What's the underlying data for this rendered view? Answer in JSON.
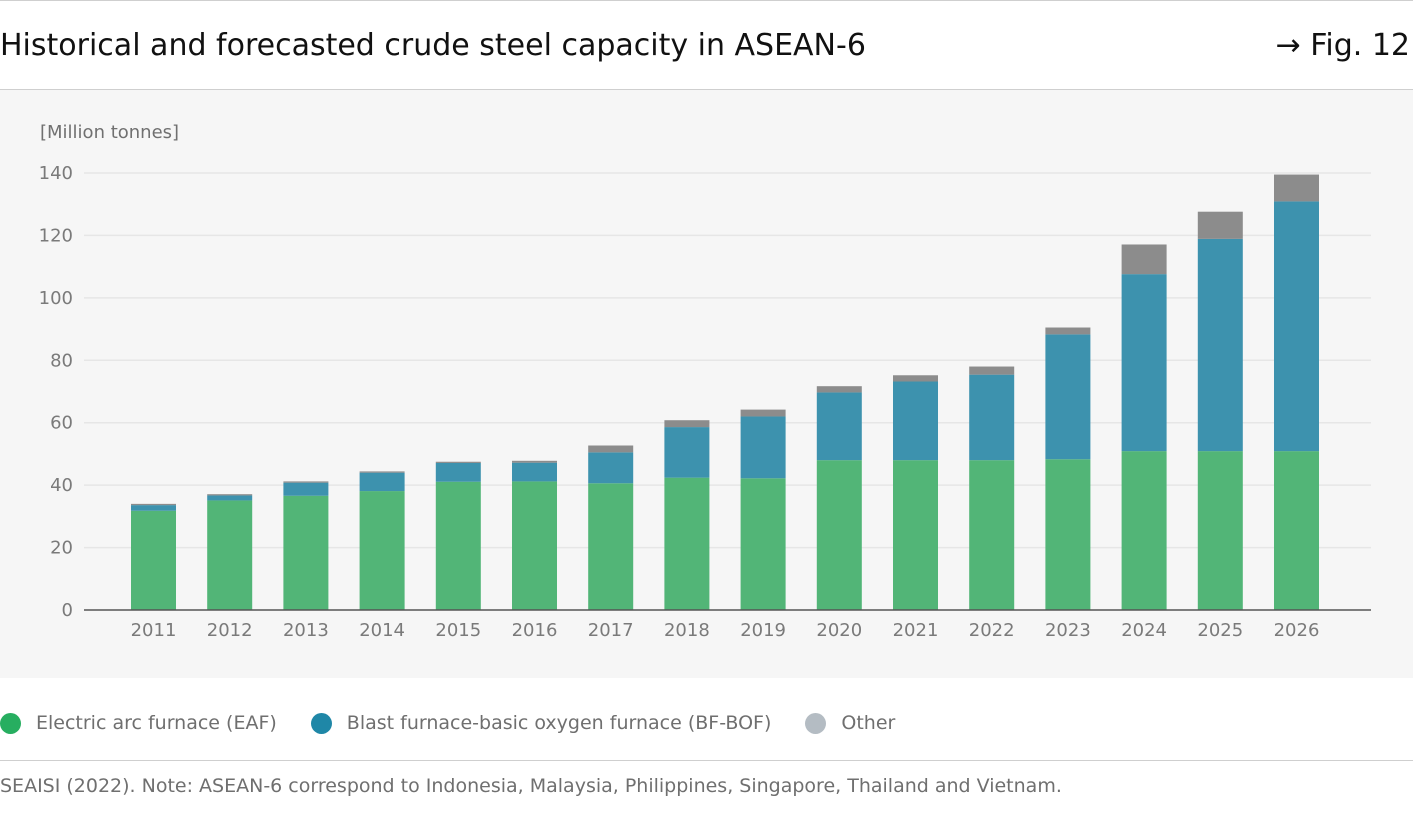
{
  "header": {
    "title": "Historical and forecasted crude steel capacity in ASEAN-6",
    "fig_ref": "→ Fig. 12"
  },
  "colors": {
    "eaf": "#52b577",
    "bf_bof": "#3d92ae",
    "other": "#8c8c8c",
    "legend_eaf": "#27ae60",
    "legend_bf_bof": "#1f87a7",
    "legend_other": "#b4bcc3"
  },
  "chart_data": {
    "type": "bar",
    "stacked": true,
    "ylabel": "[Million tonnes]",
    "ylim": [
      0,
      140
    ],
    "yticks": [
      0,
      20,
      40,
      60,
      80,
      100,
      120,
      140
    ],
    "grid": true,
    "categories": [
      "2011",
      "2012",
      "2013",
      "2014",
      "2015",
      "2016",
      "2017",
      "2018",
      "2019",
      "2020",
      "2021",
      "2022",
      "2023",
      "2024",
      "2025",
      "2026"
    ],
    "series": [
      {
        "name": "Electric arc furnace (EAF)",
        "values": [
          31.8,
          35.1,
          36.6,
          38.1,
          41.1,
          41.2,
          40.6,
          42.4,
          42.2,
          48.0,
          48.0,
          48.0,
          48.3,
          50.9,
          50.9,
          50.9
        ]
      },
      {
        "name": "Blast furnace-basic oxygen furnace (BF-BOF)",
        "values": [
          1.8,
          1.6,
          4.2,
          5.9,
          6.0,
          6.0,
          9.9,
          16.2,
          19.8,
          21.7,
          25.2,
          27.4,
          40.0,
          56.7,
          68.0,
          80.0
        ]
      },
      {
        "name": "Other",
        "values": [
          0.4,
          0.4,
          0.4,
          0.4,
          0.4,
          0.6,
          2.2,
          2.2,
          2.2,
          2.0,
          2.0,
          2.6,
          2.2,
          9.5,
          8.7,
          8.6
        ]
      }
    ],
    "legend_position": "bottom-left"
  },
  "footer": {
    "source": "SEAISI (2022). Note: ASEAN-6 correspond to Indonesia, Malaysia, Philippines, Singapore, Thailand and Vietnam."
  }
}
